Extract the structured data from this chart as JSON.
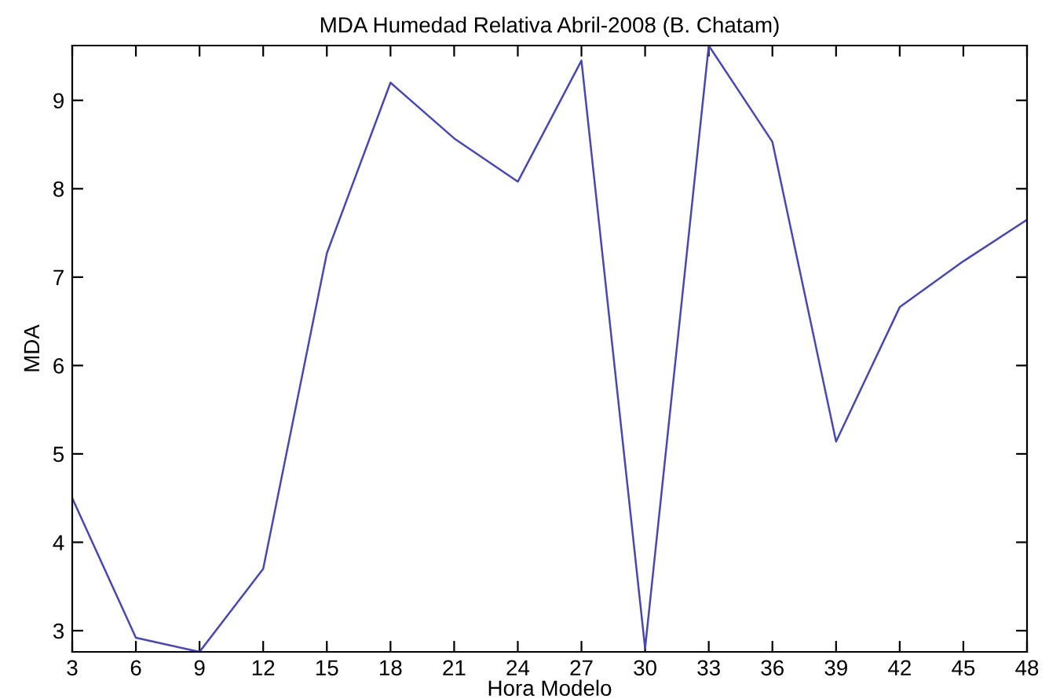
{
  "chart_data": {
    "type": "line",
    "title": "MDA Humedad Relativa Abril-2008 (B. Chatam)",
    "xlabel": "Hora Modelo",
    "ylabel": "MDA",
    "x": [
      3,
      6,
      9,
      12,
      15,
      18,
      21,
      24,
      27,
      30,
      33,
      36,
      39,
      42,
      45,
      48
    ],
    "series": [
      {
        "color": "#4848b0",
        "values": [
          4.5,
          2.92,
          2.76,
          3.7,
          7.27,
          9.2,
          8.57,
          8.08,
          9.45,
          2.8,
          9.62,
          8.53,
          5.14,
          6.66,
          7.18,
          7.65
        ]
      }
    ],
    "xlim": [
      3,
      48
    ],
    "xticks": [
      3,
      6,
      9,
      12,
      15,
      18,
      21,
      24,
      27,
      30,
      33,
      36,
      39,
      42,
      45,
      48
    ],
    "ylim": [
      2.76,
      9.62
    ],
    "yticks": [
      3,
      4,
      5,
      6,
      7,
      8,
      9
    ],
    "grid": false,
    "legend": false,
    "marker": "none",
    "line_style": "solid"
  }
}
